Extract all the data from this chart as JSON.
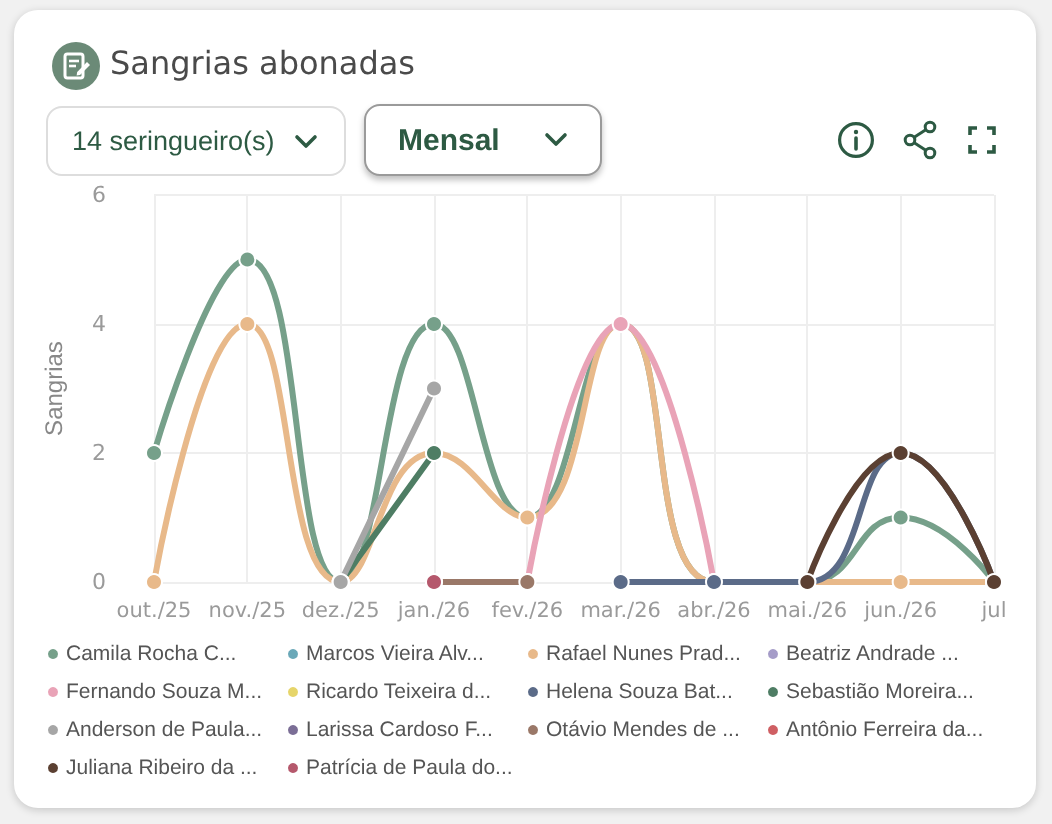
{
  "chart_data": {
    "type": "line",
    "title": "Sangrias abonadas",
    "ylabel": "Sangrias",
    "annotations": [
      "14 seringueiro(s)",
      "Mensal"
    ],
    "categories": [
      "out./25",
      "nov./25",
      "dez./25",
      "jan./26",
      "fev./26",
      "mar./26",
      "abr./26",
      "mai./26",
      "jun./26",
      "jul"
    ],
    "series": [
      {
        "name": "Camila Rocha C...",
        "color": "#76a08a",
        "values": [
          2,
          5,
          0,
          4,
          1,
          4,
          0,
          0,
          1,
          0
        ]
      },
      {
        "name": "Marcos Vieira Alv...",
        "color": "#6aa8b8",
        "values": [
          null,
          null,
          null,
          null,
          null,
          null,
          null,
          null,
          null,
          null
        ]
      },
      {
        "name": "Rafael Nunes Prad...",
        "color": "#e8b98a",
        "values": [
          0,
          4,
          0,
          2,
          1,
          4,
          0,
          0,
          0,
          0
        ]
      },
      {
        "name": "Beatriz Andrade ...",
        "color": "#a59cc8",
        "values": [
          null,
          null,
          null,
          null,
          null,
          null,
          null,
          null,
          null,
          null
        ]
      },
      {
        "name": "Fernando Souza M...",
        "color": "#e9a3b7",
        "values": [
          null,
          null,
          null,
          null,
          0,
          4,
          0,
          null,
          null,
          null
        ]
      },
      {
        "name": "Ricardo Teixeira d...",
        "color": "#e6d56a",
        "values": [
          null,
          null,
          null,
          null,
          null,
          null,
          null,
          null,
          null,
          null
        ]
      },
      {
        "name": "Helena Souza Bat...",
        "color": "#5b6b88",
        "values": [
          null,
          null,
          null,
          null,
          null,
          0,
          0,
          0,
          2,
          0
        ]
      },
      {
        "name": "Sebastião Moreira...",
        "color": "#4e7d64",
        "values": [
          null,
          null,
          0,
          2,
          null,
          null,
          null,
          null,
          null,
          null
        ]
      },
      {
        "name": "Anderson de Paula...",
        "color": "#a6a6a6",
        "values": [
          null,
          null,
          0,
          3,
          null,
          null,
          null,
          null,
          null,
          null
        ]
      },
      {
        "name": "Larissa Cardoso F...",
        "color": "#7b6e96",
        "values": [
          null,
          null,
          null,
          null,
          null,
          null,
          null,
          null,
          null,
          null
        ]
      },
      {
        "name": "Otávio Mendes de ...",
        "color": "#9a7868",
        "values": [
          null,
          null,
          null,
          0,
          0,
          null,
          null,
          null,
          null,
          null
        ]
      },
      {
        "name": "Antônio Ferreira da...",
        "color": "#cf5f63",
        "values": [
          null,
          null,
          null,
          null,
          null,
          null,
          null,
          null,
          null,
          null
        ]
      },
      {
        "name": "Juliana Ribeiro da ...",
        "color": "#5b4032",
        "values": [
          null,
          null,
          null,
          null,
          null,
          null,
          null,
          0,
          2,
          0
        ]
      },
      {
        "name": "Patrícia de Paula do...",
        "color": "#b5586c",
        "values": [
          null,
          null,
          null,
          0,
          null,
          null,
          null,
          null,
          null,
          null
        ]
      }
    ],
    "ylim": [
      0,
      6
    ],
    "yticks": [
      0,
      2,
      4,
      6
    ],
    "grid": true,
    "legend": "bottom",
    "marker": "circle",
    "line_style": "solid"
  }
}
